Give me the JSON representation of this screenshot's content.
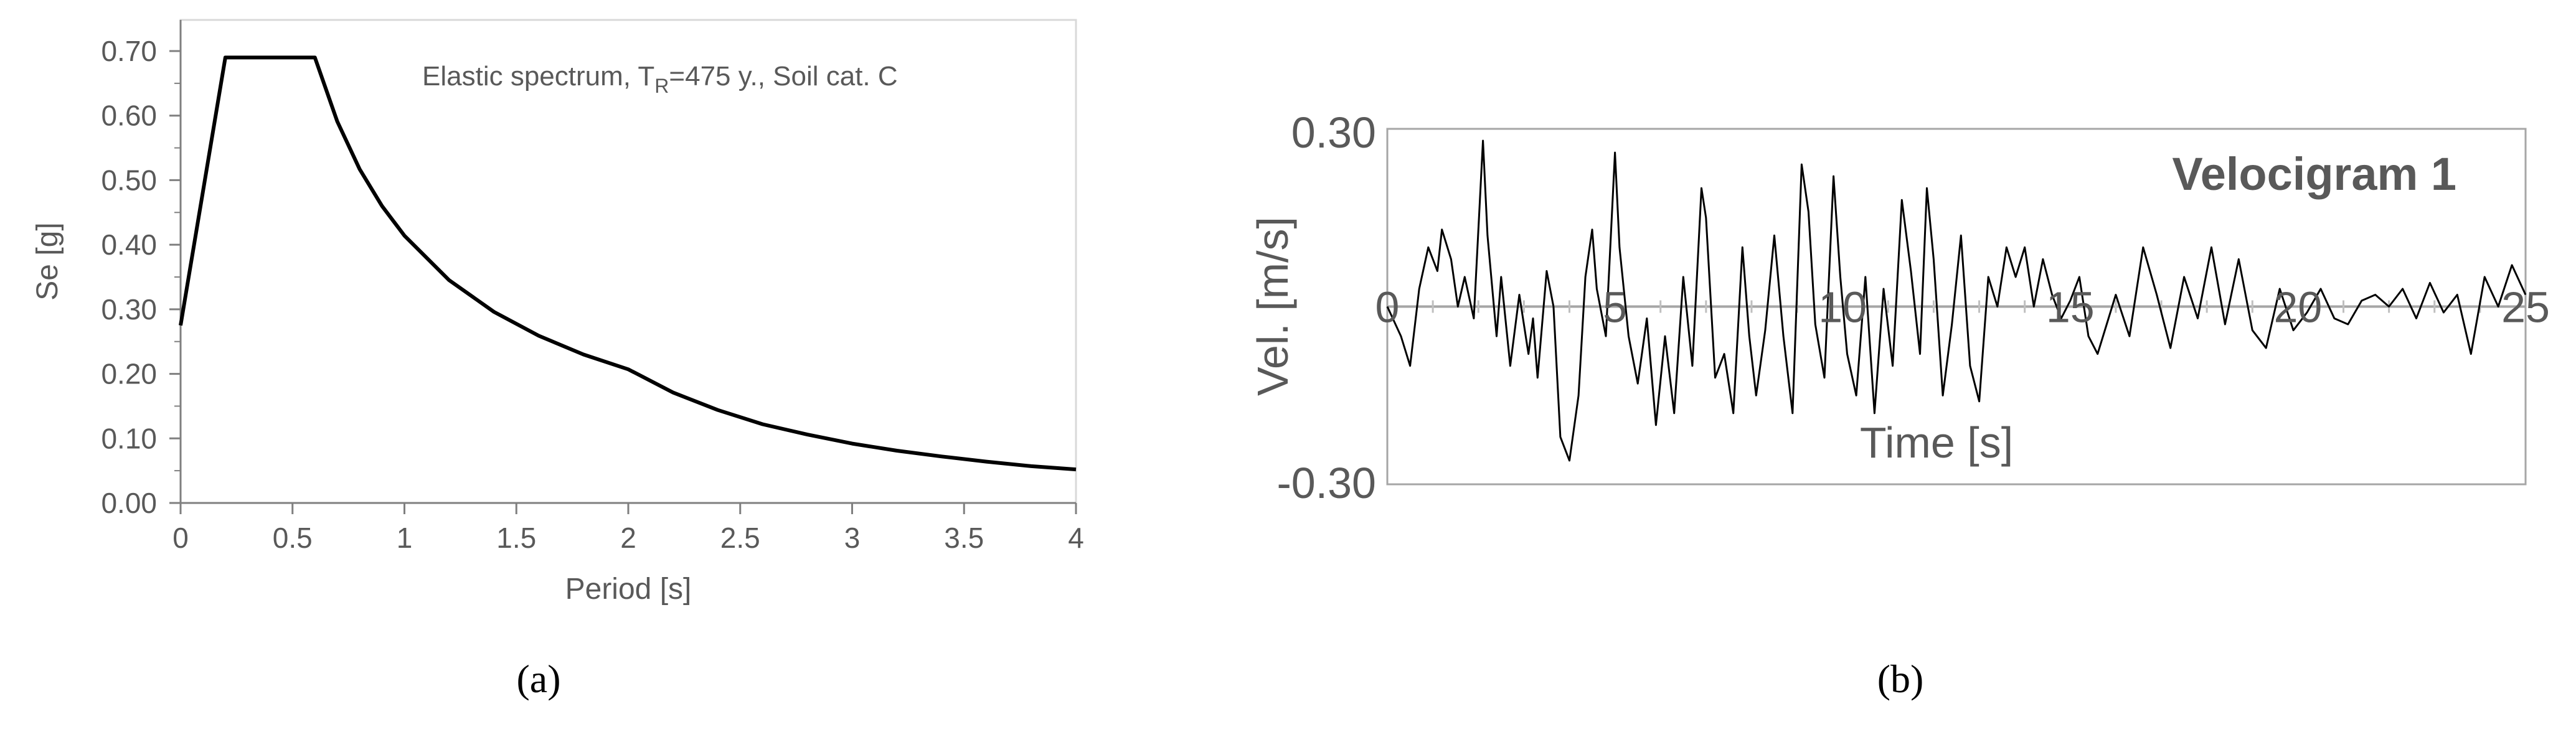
{
  "panels": [
    {
      "label": "(a)"
    },
    {
      "label": "(b)"
    }
  ],
  "chart_data": [
    {
      "type": "line",
      "annotation": "Elastic spectrum, T",
      "annotation_sub": "R",
      "annotation_rest": "=475 y., Soil cat. C",
      "xlabel": "Period [s]",
      "ylabel": "Se [g]",
      "xlim": [
        0,
        4
      ],
      "ylim": [
        0,
        0.7
      ],
      "xticks": [
        "0",
        "0.5",
        "1",
        "1.5",
        "2",
        "2.5",
        "3",
        "3.5",
        "4"
      ],
      "yticks": [
        "0.00",
        "0.10",
        "0.20",
        "0.30",
        "0.40",
        "0.50",
        "0.60",
        "0.70"
      ],
      "grid": false,
      "colors": {
        "line": "#000000",
        "frame": "#d9d9d9",
        "text": "#595959"
      },
      "series": [
        {
          "x": [
            0,
            0.2,
            0.6,
            0.7,
            0.8,
            0.9,
            1.0,
            1.2,
            1.4,
            1.6,
            1.8,
            2.0,
            2.2,
            2.4,
            2.6,
            2.8,
            3.0,
            3.2,
            3.4,
            3.6,
            3.8,
            4.0
          ],
          "y": [
            0.275,
            0.69,
            0.69,
            0.591,
            0.517,
            0.46,
            0.414,
            0.345,
            0.296,
            0.259,
            0.23,
            0.207,
            0.171,
            0.144,
            0.122,
            0.106,
            0.092,
            0.081,
            0.072,
            0.064,
            0.057,
            0.052
          ]
        }
      ]
    },
    {
      "type": "line",
      "title": "Velocigram 1",
      "xlabel": "Time [s]",
      "ylabel": "Vel. [m/s]",
      "xlim": [
        0,
        25
      ],
      "ylim": [
        -0.3,
        0.3
      ],
      "xticks": [
        "0",
        "5",
        "10",
        "15",
        "20",
        "25"
      ],
      "yticks": [
        "-0.30",
        "0.30"
      ],
      "grid": false,
      "colors": {
        "line": "#000000",
        "frame": "#a6a6a6",
        "text": "#595959",
        "zero_line": "#a6a6a6"
      },
      "series": [
        {
          "x": [
            0,
            0.3,
            0.5,
            0.7,
            0.9,
            1.1,
            1.2,
            1.4,
            1.55,
            1.7,
            1.9,
            2.1,
            2.2,
            2.4,
            2.5,
            2.7,
            2.9,
            3.1,
            3.2,
            3.3,
            3.5,
            3.65,
            3.8,
            4.0,
            4.2,
            4.35,
            4.5,
            4.6,
            4.8,
            5.0,
            5.1,
            5.3,
            5.5,
            5.7,
            5.9,
            6.1,
            6.3,
            6.5,
            6.7,
            6.9,
            7.0,
            7.2,
            7.4,
            7.6,
            7.8,
            7.95,
            8.1,
            8.3,
            8.5,
            8.7,
            8.9,
            9.1,
            9.25,
            9.4,
            9.6,
            9.8,
            9.95,
            10.1,
            10.3,
            10.5,
            10.7,
            10.9,
            11.1,
            11.3,
            11.5,
            11.7,
            11.85,
            12.0,
            12.2,
            12.4,
            12.6,
            12.8,
            13.0,
            13.2,
            13.4,
            13.6,
            13.8,
            14.0,
            14.2,
            14.4,
            14.6,
            14.8,
            15.0,
            15.2,
            15.4,
            15.6,
            15.8,
            16.0,
            16.3,
            16.6,
            16.9,
            17.2,
            17.5,
            17.8,
            18.1,
            18.4,
            18.7,
            19.0,
            19.3,
            19.6,
            19.9,
            20.2,
            20.5,
            20.8,
            21.1,
            21.4,
            21.7,
            22.0,
            22.3,
            22.6,
            22.9,
            23.2,
            23.5,
            23.8,
            24.1,
            24.4,
            24.7,
            25.0
          ],
          "y": [
            0.0,
            -0.05,
            -0.1,
            0.03,
            0.1,
            0.06,
            0.13,
            0.08,
            0.0,
            0.05,
            -0.02,
            0.28,
            0.12,
            -0.05,
            0.05,
            -0.1,
            0.02,
            -0.08,
            -0.02,
            -0.12,
            0.06,
            0.0,
            -0.22,
            -0.26,
            -0.15,
            0.05,
            0.13,
            0.03,
            -0.05,
            0.26,
            0.1,
            -0.05,
            -0.13,
            -0.02,
            -0.2,
            -0.05,
            -0.18,
            0.05,
            -0.1,
            0.2,
            0.15,
            -0.12,
            -0.08,
            -0.18,
            0.1,
            -0.05,
            -0.15,
            -0.04,
            0.12,
            -0.05,
            -0.18,
            0.24,
            0.16,
            -0.03,
            -0.12,
            0.22,
            0.05,
            -0.08,
            -0.15,
            0.05,
            -0.18,
            0.03,
            -0.1,
            0.18,
            0.06,
            -0.08,
            0.2,
            0.08,
            -0.15,
            -0.03,
            0.12,
            -0.1,
            -0.16,
            0.05,
            0.0,
            0.1,
            0.05,
            0.1,
            0.0,
            0.08,
            0.02,
            -0.02,
            0.01,
            0.05,
            -0.05,
            -0.08,
            -0.03,
            0.02,
            -0.05,
            0.1,
            0.02,
            -0.07,
            0.05,
            -0.02,
            0.1,
            -0.03,
            0.08,
            -0.04,
            -0.07,
            0.03,
            -0.04,
            -0.01,
            0.03,
            -0.02,
            -0.03,
            0.01,
            0.02,
            0.0,
            0.03,
            -0.02,
            0.04,
            -0.01,
            0.02,
            -0.08,
            0.05,
            0.0,
            0.07,
            0.02
          ]
        }
      ]
    }
  ]
}
